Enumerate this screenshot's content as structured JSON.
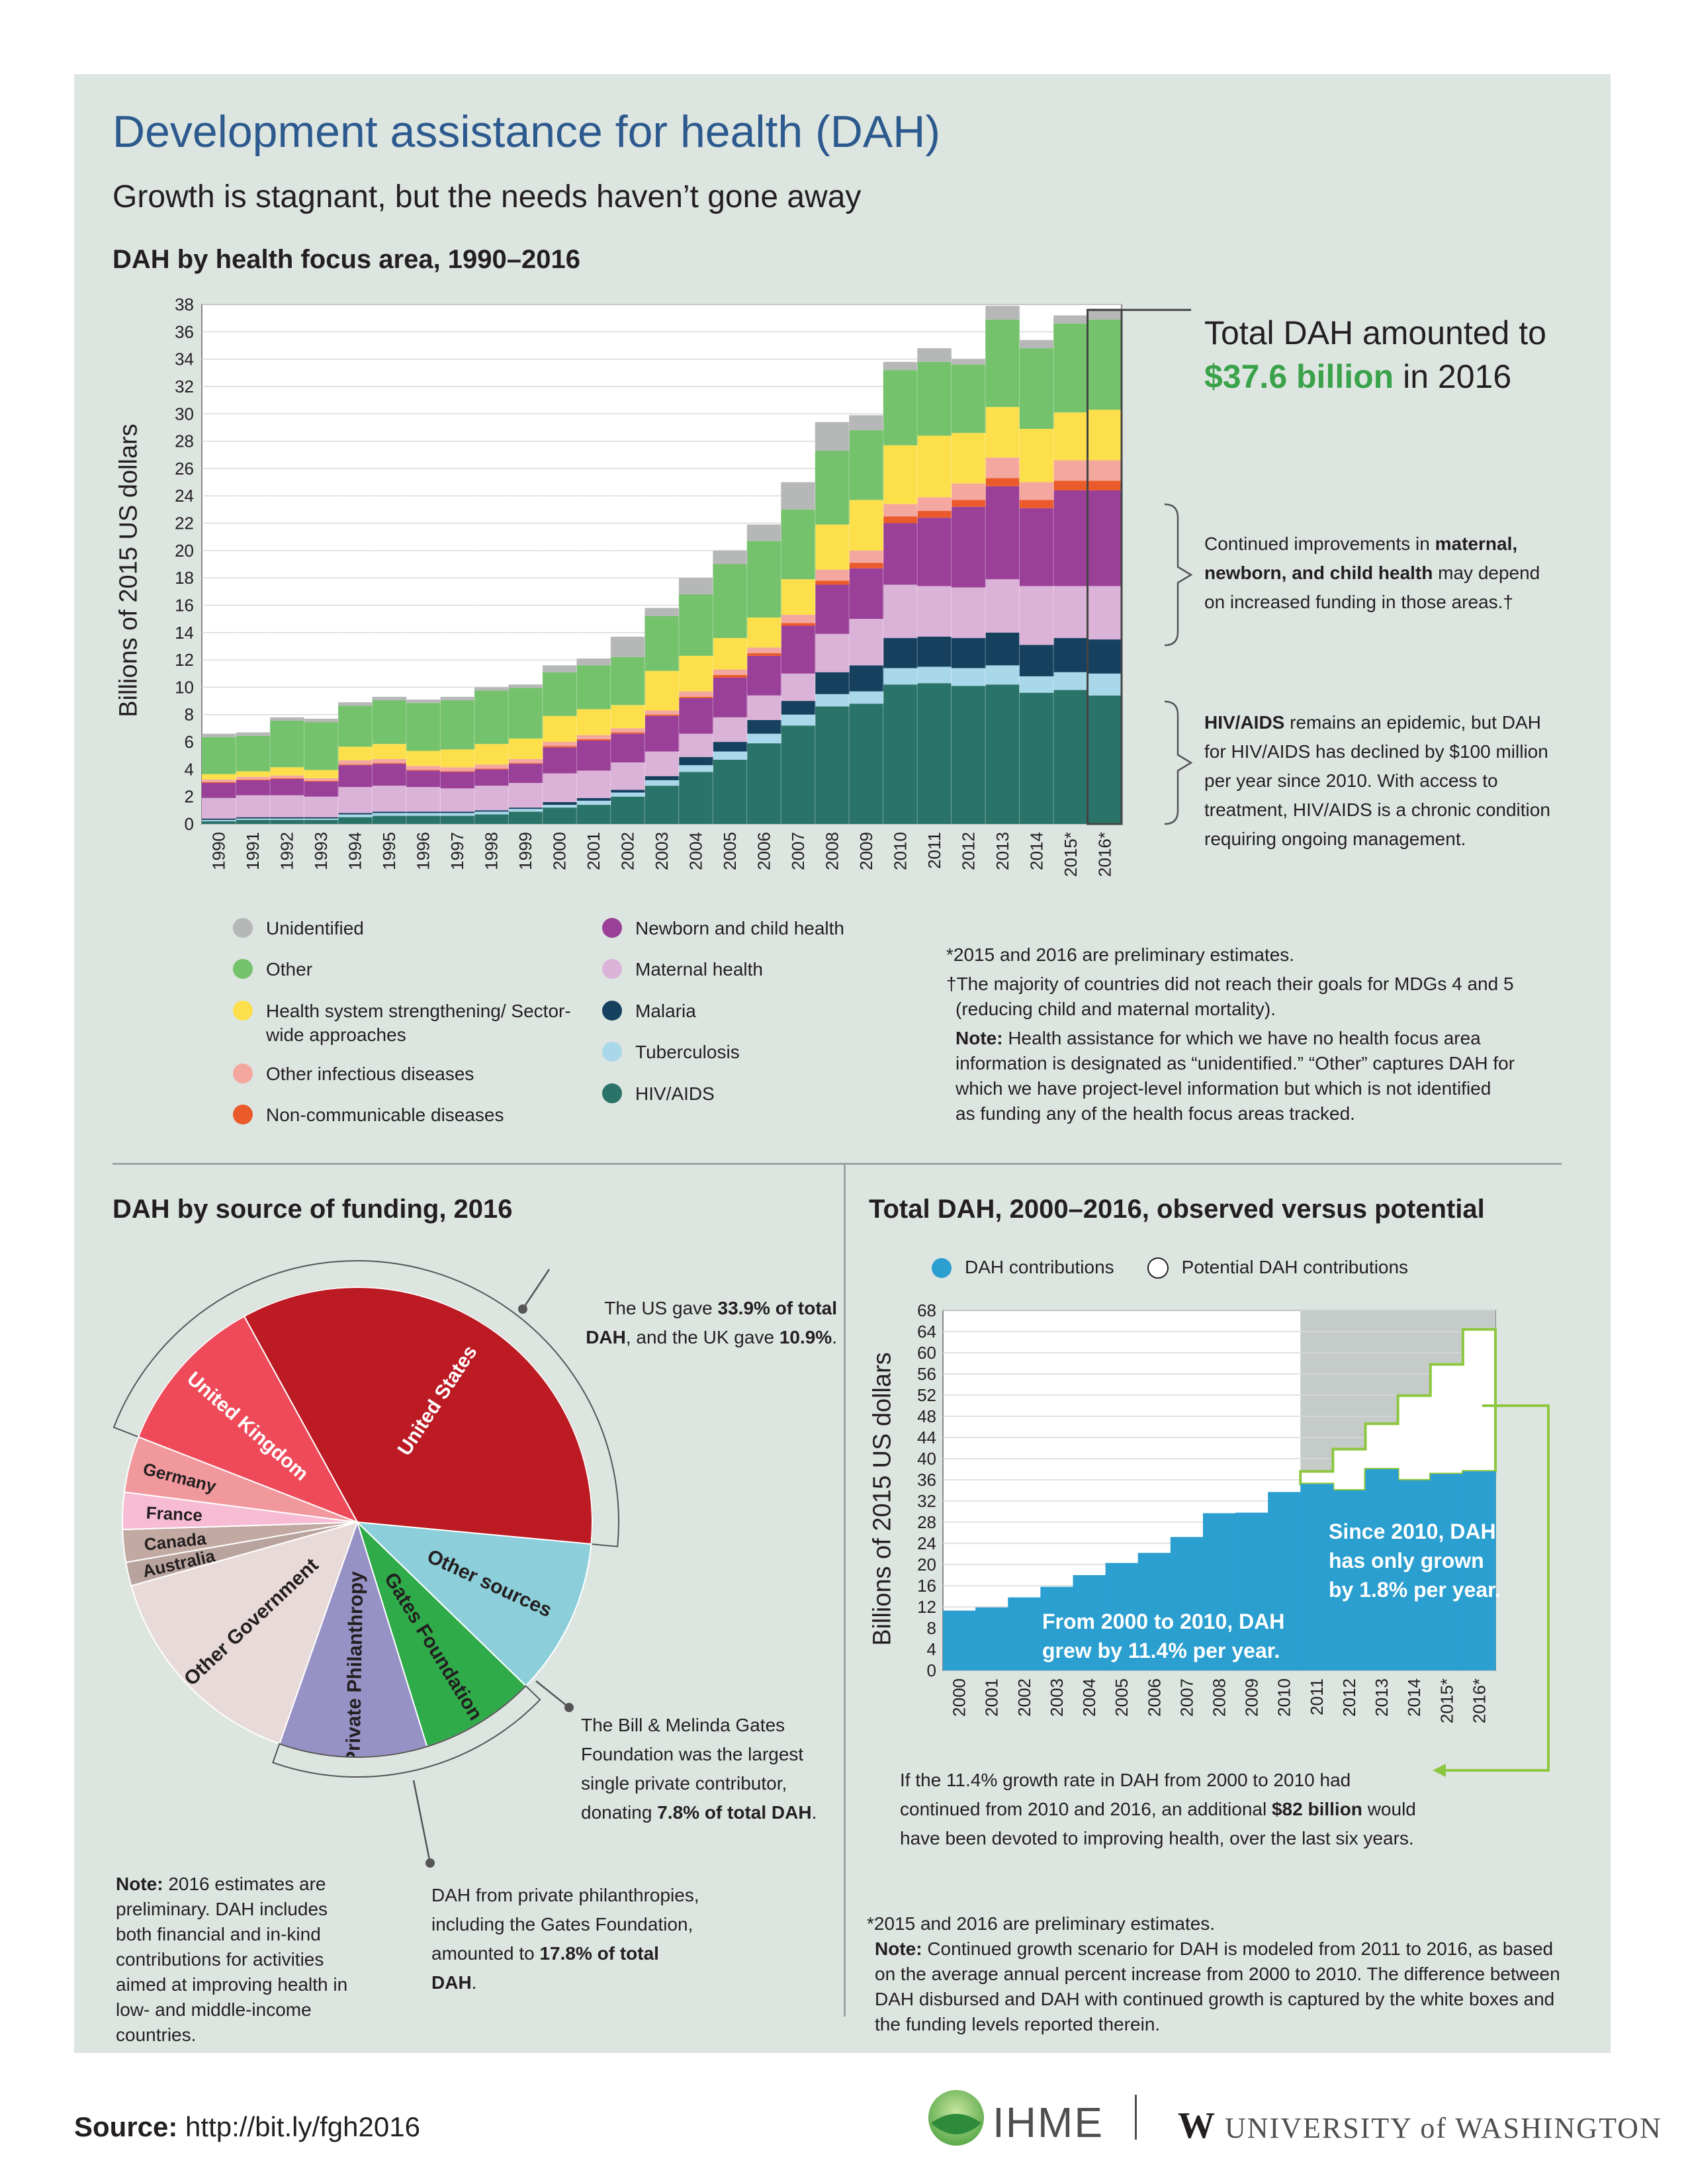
{
  "title": "Development assistance for health (DAH)",
  "subtitle": "Growth is stagnant, but the needs haven’t gone away",
  "source": {
    "label": "Source:",
    "url": "http://bit.ly/fgh2016"
  },
  "logos": {
    "ihme": "IHME",
    "uw_w": "W",
    "uw": "UNIVERSITY of WASHINGTON"
  },
  "colors": {
    "HIV/AIDS": "#2a7368",
    "Tuberculosis": "#a9d8ea",
    "Malaria": "#15415f",
    "Maternal health": "#dcb3d8",
    "Newborn and child health": "#9a4098",
    "Non-communicable diseases": "#ea5a2a",
    "Other infectious diseases": "#f4a79e",
    "Health system strengthening/ Sector-wide approaches": "#fcdf4a",
    "Other": "#74c26c",
    "Unidentified": "#b5b8b7"
  },
  "chart_data": [
    {
      "id": "focus-area",
      "type": "area",
      "stacked": true,
      "title": "DAH by health focus area, 1990–2016",
      "ylabel": "Billions of 2015 US dollars",
      "ylim": [
        0,
        38
      ],
      "yticks": [
        0,
        2,
        4,
        6,
        8,
        10,
        12,
        14,
        16,
        18,
        20,
        22,
        24,
        26,
        28,
        30,
        32,
        34,
        36,
        38
      ],
      "categories": [
        "1990",
        "1991",
        "1992",
        "1993",
        "1994",
        "1995",
        "1996",
        "1997",
        "1998",
        "1999",
        "2000",
        "2001",
        "2002",
        "2003",
        "2004",
        "2005",
        "2006",
        "2007",
        "2008",
        "2009",
        "2010",
        "2011",
        "2012",
        "2013",
        "2014",
        "2015*",
        "2016*"
      ],
      "series": [
        {
          "name": "HIV/AIDS",
          "values": [
            0.2,
            0.3,
            0.3,
            0.3,
            0.5,
            0.6,
            0.6,
            0.6,
            0.7,
            0.9,
            1.2,
            1.4,
            2.0,
            2.8,
            3.8,
            4.7,
            5.9,
            7.2,
            8.6,
            8.8,
            10.2,
            10.3,
            10.1,
            10.2,
            9.6,
            9.8,
            9.4
          ]
        },
        {
          "name": "Tuberculosis",
          "values": [
            0.1,
            0.1,
            0.1,
            0.1,
            0.2,
            0.2,
            0.2,
            0.2,
            0.2,
            0.2,
            0.2,
            0.3,
            0.3,
            0.4,
            0.5,
            0.6,
            0.7,
            0.8,
            0.9,
            0.9,
            1.2,
            1.2,
            1.3,
            1.4,
            1.2,
            1.3,
            1.6
          ]
        },
        {
          "name": "Malaria",
          "values": [
            0.1,
            0.1,
            0.1,
            0.1,
            0.1,
            0.1,
            0.1,
            0.1,
            0.1,
            0.1,
            0.2,
            0.2,
            0.2,
            0.3,
            0.6,
            0.7,
            1.0,
            1.0,
            1.6,
            1.9,
            2.2,
            2.2,
            2.2,
            2.4,
            2.3,
            2.5,
            2.5
          ]
        },
        {
          "name": "Maternal health",
          "values": [
            1.5,
            1.6,
            1.6,
            1.5,
            1.9,
            1.9,
            1.8,
            1.7,
            1.8,
            1.8,
            2.1,
            2.0,
            2.0,
            1.8,
            1.7,
            1.8,
            1.8,
            2.0,
            2.8,
            3.4,
            3.9,
            3.7,
            3.7,
            3.9,
            4.3,
            3.8,
            3.9
          ]
        },
        {
          "name": "Newborn and child health",
          "values": [
            1.1,
            1.1,
            1.2,
            1.1,
            1.6,
            1.6,
            1.2,
            1.2,
            1.2,
            1.4,
            1.9,
            2.2,
            2.1,
            2.6,
            2.6,
            2.9,
            2.9,
            3.5,
            3.6,
            3.7,
            4.5,
            5.0,
            5.9,
            6.8,
            5.7,
            7.0,
            7.0
          ]
        },
        {
          "name": "Non-communicable diseases",
          "values": [
            0.05,
            0.05,
            0.05,
            0.05,
            0.05,
            0.05,
            0.05,
            0.05,
            0.05,
            0.05,
            0.1,
            0.1,
            0.1,
            0.1,
            0.1,
            0.2,
            0.2,
            0.2,
            0.3,
            0.4,
            0.5,
            0.5,
            0.5,
            0.6,
            0.6,
            0.7,
            0.7
          ]
        },
        {
          "name": "Other infectious diseases",
          "values": [
            0.2,
            0.2,
            0.2,
            0.2,
            0.3,
            0.3,
            0.3,
            0.3,
            0.3,
            0.3,
            0.3,
            0.3,
            0.3,
            0.3,
            0.4,
            0.4,
            0.4,
            0.6,
            0.8,
            0.9,
            0.9,
            1.0,
            1.2,
            1.5,
            1.3,
            1.5,
            1.5
          ]
        },
        {
          "name": "Health system strengthening/ Sector-wide approaches",
          "values": [
            0.4,
            0.4,
            0.6,
            0.6,
            1.0,
            1.1,
            1.1,
            1.3,
            1.5,
            1.5,
            1.9,
            1.9,
            1.7,
            2.9,
            2.6,
            2.3,
            2.2,
            2.6,
            3.3,
            3.7,
            4.3,
            4.5,
            3.7,
            3.7,
            3.9,
            3.5,
            3.7
          ]
        },
        {
          "name": "Other",
          "values": [
            2.7,
            2.6,
            3.4,
            3.5,
            3.0,
            3.2,
            3.5,
            3.6,
            3.9,
            3.7,
            3.2,
            3.2,
            3.5,
            4.0,
            4.5,
            5.4,
            5.6,
            5.1,
            5.4,
            5.1,
            5.5,
            5.4,
            5.0,
            6.4,
            5.9,
            6.5,
            6.6
          ]
        },
        {
          "name": "Unidentified",
          "values": [
            0.25,
            0.25,
            0.25,
            0.25,
            0.25,
            0.25,
            0.25,
            0.25,
            0.25,
            0.25,
            0.5,
            0.5,
            1.5,
            0.6,
            1.2,
            1.0,
            1.2,
            2.0,
            2.1,
            1.1,
            0.6,
            1.0,
            0.4,
            1.0,
            0.6,
            0.6,
            0.7
          ]
        }
      ]
    },
    {
      "id": "funding-source",
      "type": "pie",
      "title": "DAH by source of funding, 2016",
      "slices": [
        {
          "label": "United States",
          "value": 33.9,
          "color": "#bc1b24"
        },
        {
          "label": "Other sources",
          "value": 10.6,
          "color": "#8ccfda"
        },
        {
          "label": "Gates Foundation",
          "value": 7.8,
          "color": "#2fab4a"
        },
        {
          "label": "Private Philanthropy",
          "value": 10.0,
          "color": "#9792c6"
        },
        {
          "label": "Other Government",
          "value": 15.0,
          "color": "#e8dad8"
        },
        {
          "label": "Australia",
          "value": 1.6,
          "color": "#b9a39e"
        },
        {
          "label": "Canada",
          "value": 2.2,
          "color": "#c2a9a2"
        },
        {
          "label": "France",
          "value": 2.5,
          "color": "#f7bcd4"
        },
        {
          "label": "Germany",
          "value": 3.8,
          "color": "#f1989d"
        },
        {
          "label": "United Kingdom",
          "value": 10.9,
          "color": "#ee4a59"
        }
      ]
    },
    {
      "id": "observed-vs-potential",
      "type": "bar",
      "title": "Total DAH, 2000–2016, observed versus potential",
      "ylabel": "Billions of 2015 US dollars",
      "ylim": [
        0,
        68
      ],
      "yticks": [
        0,
        4,
        8,
        12,
        16,
        20,
        24,
        28,
        32,
        36,
        40,
        44,
        48,
        52,
        56,
        60,
        64,
        68
      ],
      "categories": [
        "2000",
        "2001",
        "2002",
        "2003",
        "2004",
        "2005",
        "2006",
        "2007",
        "2008",
        "2009",
        "2010",
        "2011",
        "2012",
        "2013",
        "2014",
        "2015*",
        "2016*"
      ],
      "series": [
        {
          "name": "DAH contributions",
          "values": [
            11.3,
            11.9,
            13.8,
            15.8,
            18.0,
            20.3,
            22.2,
            25.2,
            29.7,
            29.8,
            33.7,
            35.2,
            34.0,
            38.0,
            35.9,
            37.1,
            37.6
          ]
        },
        {
          "name": "Potential DAH contributions",
          "values": [
            null,
            null,
            null,
            null,
            null,
            null,
            null,
            null,
            null,
            null,
            null,
            37.6,
            41.8,
            46.6,
            51.9,
            57.8,
            64.4
          ]
        }
      ]
    }
  ],
  "focus_callouts": {
    "total_line1": "Total DAH amounted to",
    "total_amount": "$37.6 billion",
    "total_rest": " in 2016",
    "maternal_pre": "Continued improvements in ",
    "maternal_bold": "maternal, newborn, and child health",
    "maternal_post": " may depend on increased funding in those areas.†",
    "hiv_bold": "HIV/AIDS",
    "hiv_post": " remains an epidemic, but DAH for HIV/AIDS has declined by $100 million per year since 2010. With access to treatment, HIV/AIDS is a chronic condition requiring ongoing management."
  },
  "focus_legend_left": [
    "Unidentified",
    "Other",
    "Health system strengthening/ Sector-wide approaches",
    "Other infectious diseases",
    "Non-communicable diseases"
  ],
  "focus_legend_right": [
    "Newborn and child health",
    "Maternal health",
    "Malaria",
    "Tuberculosis",
    "HIV/AIDS"
  ],
  "focus_notes": {
    "prelim": "*2015 and 2016 are preliminary estimates.",
    "dagger": "†The majority of countries did not reach their goals for MDGs 4 and 5 (reducing child and maternal mortality).",
    "note_label": "Note:",
    "note_text": " Health assistance for which we have no health focus area information is designated as “unidentified.” “Other” captures DAH for which we have project-level information but which is not identified as funding any of the health focus areas tracked."
  },
  "pie_callouts": {
    "us_pre": "The US gave ",
    "us_bold": "33.9% of total DAH",
    "us_mid": ", and the UK gave ",
    "uk_bold": "10.9%",
    "uk_post": ".",
    "gates_pre": "The Bill & Melinda Gates Foundation was the largest single private contributor, donating ",
    "gates_bold": "7.8% of total DAH",
    "gates_post": ".",
    "private_pre": "DAH from private philanthropies, including the Gates Foundation, amounted to ",
    "private_bold": "17.8% of total DAH",
    "private_post": ".",
    "note_label": "Note:",
    "note_text": " 2016 estimates are preliminary.  DAH includes both financial and in-kind contributions for activities aimed at improving health in low- and middle-income countries."
  },
  "bar_annotations": {
    "growth_2000": "From 2000 to 2010, DAH grew by 11.4% per year.",
    "growth_2010": "Since 2010, DAH has only grown by 1.8% per year.",
    "potential_pre": "If the 11.4% growth rate in DAH from 2000 to 2010 had continued from 2010 and 2016, an additional ",
    "potential_bold": "$82 billion",
    "potential_post": " would have been devoted to improving health, over the last six years.",
    "prelim": "*2015 and 2016 are preliminary estimates.",
    "note_label": "Note:",
    "note_text": " Continued growth scenario for DAH is modeled from 2011 to 2016, as based on the average annual percent increase from 2000 to 2010. The difference between DAH disbursed and DAH with continued growth is captured by the white boxes and the funding levels reported therein."
  }
}
